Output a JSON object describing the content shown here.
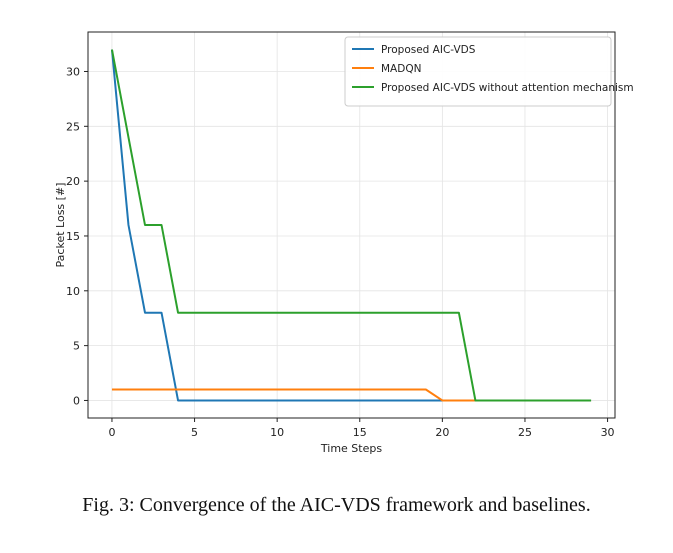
{
  "caption": "Fig. 3: Convergence of the AIC-VDS framework and baselines.",
  "chart_data": {
    "type": "line",
    "xlabel": "Time Steps",
    "ylabel": "Packet Loss [#]",
    "xlim": [
      -1.45,
      30.45
    ],
    "ylim": [
      -1.6,
      33.6
    ],
    "xticks": [
      0,
      5,
      10,
      15,
      20,
      25,
      30
    ],
    "yticks": [
      0,
      5,
      10,
      15,
      20,
      25,
      30
    ],
    "grid": true,
    "legend_position": "top-right",
    "series": [
      {
        "name": "Proposed AIC-VDS",
        "color": "#1f77b4",
        "x": [
          0,
          1,
          2,
          3,
          4,
          5,
          6,
          7,
          8,
          9,
          10,
          11,
          12,
          13,
          14,
          15,
          16,
          17,
          18,
          19,
          20,
          21,
          22,
          23,
          24,
          25,
          26,
          27,
          28,
          29
        ],
        "y": [
          32,
          16,
          8,
          8,
          0,
          0,
          0,
          0,
          0,
          0,
          0,
          0,
          0,
          0,
          0,
          0,
          0,
          0,
          0,
          0,
          0,
          0,
          0,
          0,
          0,
          0,
          0,
          0,
          0,
          0
        ]
      },
      {
        "name": "MADQN",
        "color": "#ff7f0e",
        "x": [
          0,
          1,
          2,
          3,
          4,
          5,
          6,
          7,
          8,
          9,
          10,
          11,
          12,
          13,
          14,
          15,
          16,
          17,
          18,
          19,
          20,
          21,
          22,
          23,
          24,
          25,
          26,
          27,
          28,
          29
        ],
        "y": [
          1,
          1,
          1,
          1,
          1,
          1,
          1,
          1,
          1,
          1,
          1,
          1,
          1,
          1,
          1,
          1,
          1,
          1,
          1,
          1,
          0,
          0,
          0,
          0,
          0,
          0,
          0,
          0,
          0,
          0
        ]
      },
      {
        "name": "Proposed AIC-VDS without attention mechanism",
        "color": "#2ca02c",
        "x": [
          0,
          1,
          2,
          3,
          4,
          5,
          6,
          7,
          8,
          9,
          10,
          11,
          12,
          13,
          14,
          15,
          16,
          17,
          18,
          19,
          20,
          21,
          22,
          23,
          24,
          25,
          26,
          27,
          28,
          29
        ],
        "y": [
          32,
          24,
          16,
          16,
          8,
          8,
          8,
          8,
          8,
          8,
          8,
          8,
          8,
          8,
          8,
          8,
          8,
          8,
          8,
          8,
          8,
          8,
          0,
          0,
          0,
          0,
          0,
          0,
          0,
          0
        ]
      }
    ]
  }
}
